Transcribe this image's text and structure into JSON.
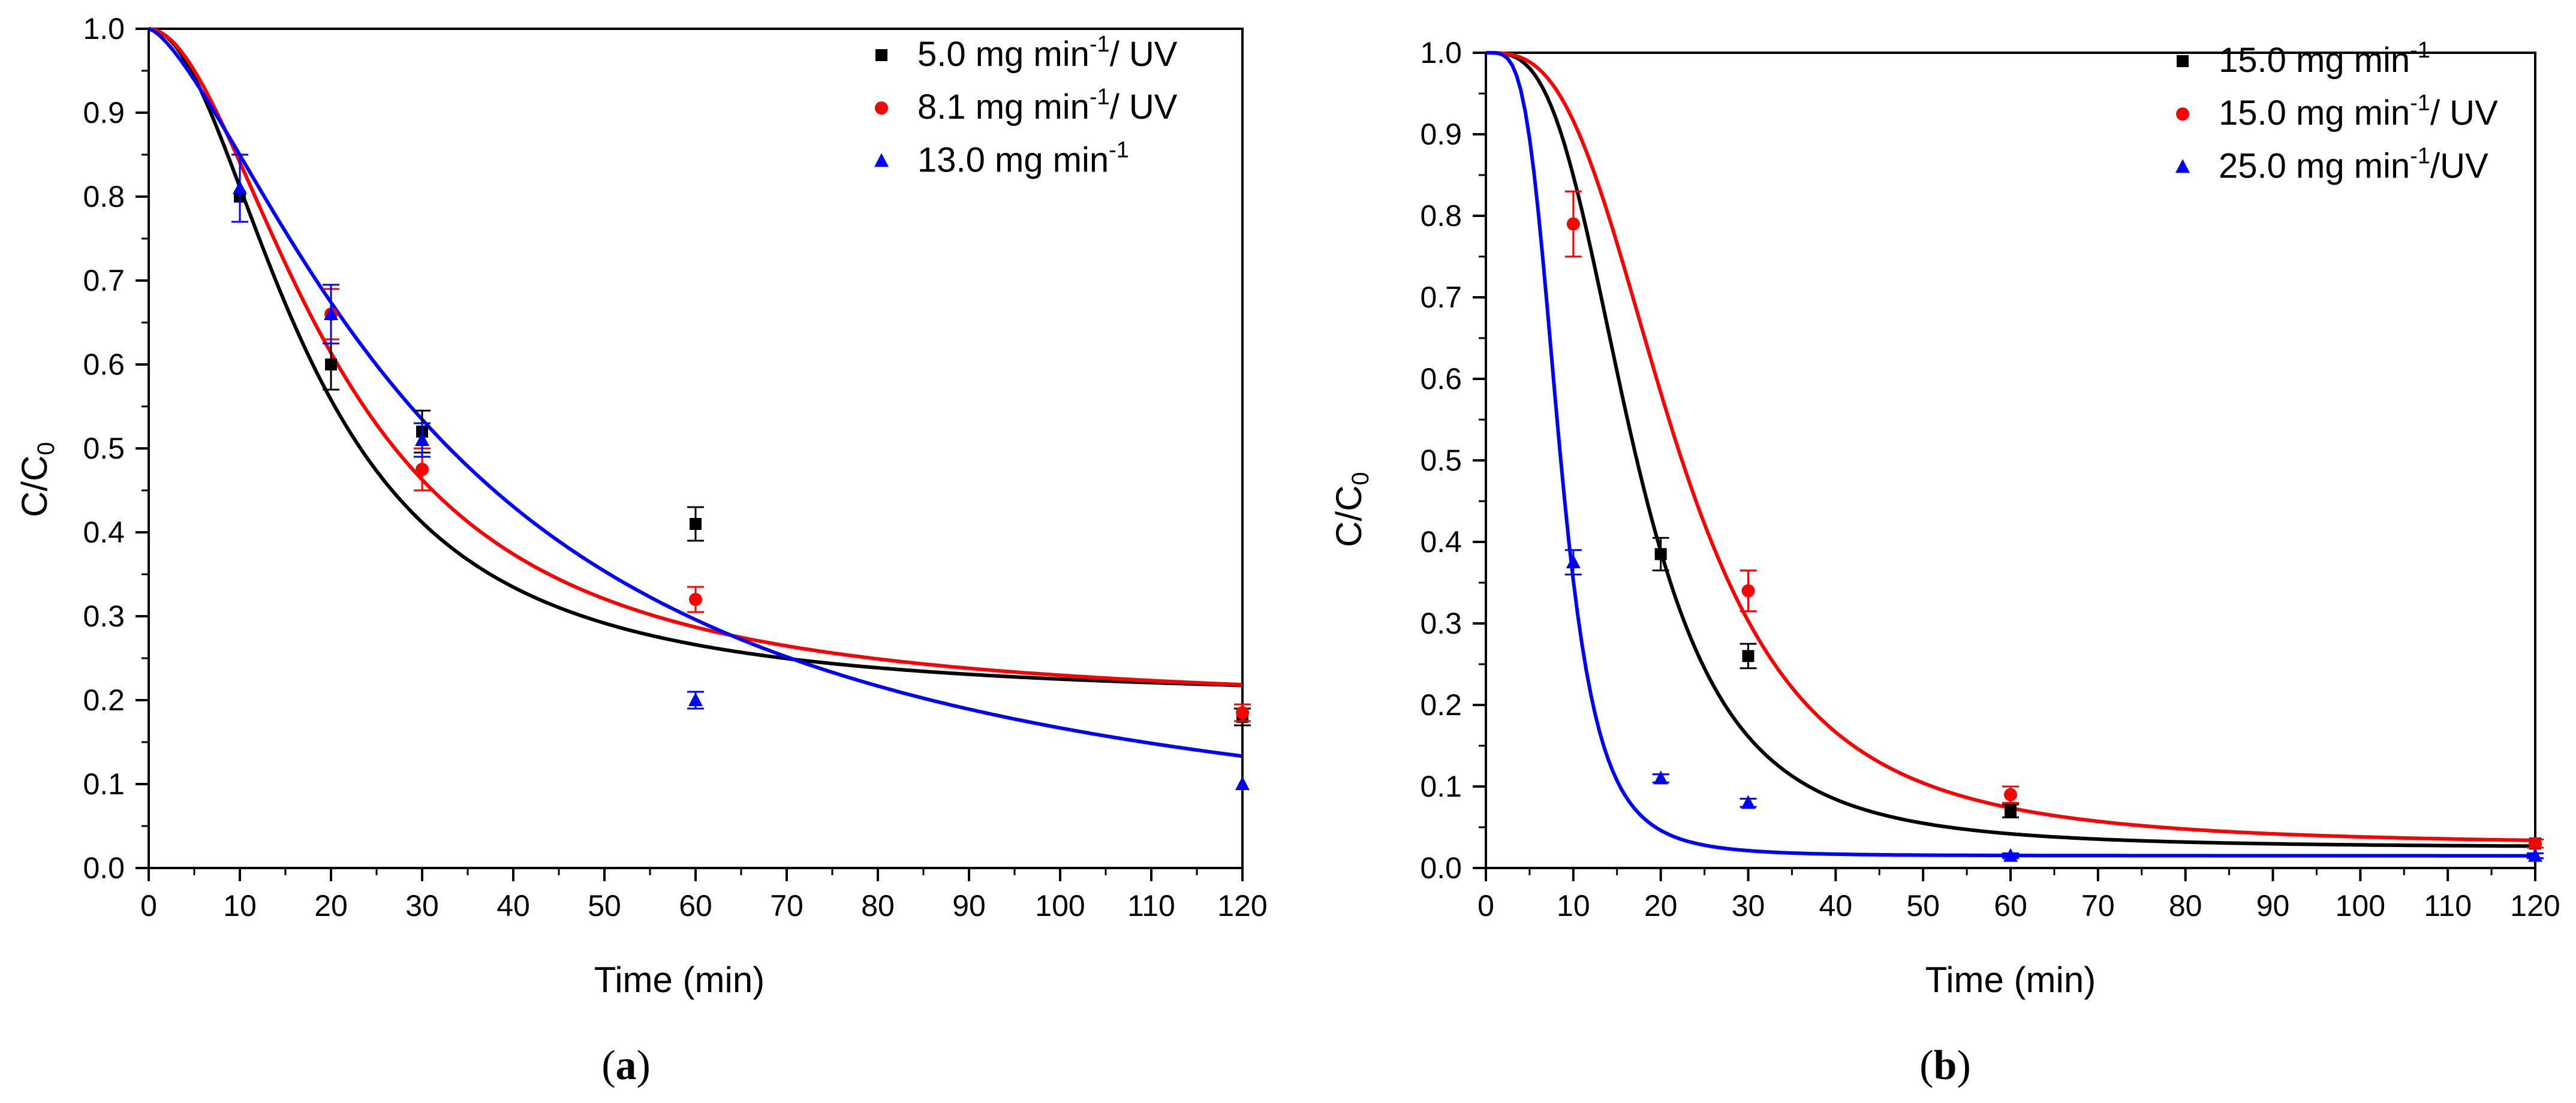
{
  "chart_data": [
    {
      "type": "scatter",
      "panel_label": "a",
      "xlabel": "Time (min)",
      "ylabel": "C/C",
      "ylabel_subscript": "0",
      "xlim": [
        0,
        120
      ],
      "ylim": [
        0,
        1.0
      ],
      "xticks": [
        "0",
        "10",
        "20",
        "30",
        "40",
        "50",
        "60",
        "70",
        "80",
        "90",
        "100",
        "110",
        "120"
      ],
      "yticks": [
        "0.0",
        "0.1",
        "0.2",
        "0.3",
        "0.4",
        "0.5",
        "0.6",
        "0.7",
        "0.8",
        "0.9",
        "1.0"
      ],
      "legend_position": "top-right",
      "series": [
        {
          "name": "5.0 mg min-1/ UV",
          "legend": {
            "pre": "5.0 mg min",
            "sup": "-1",
            "post": "/ UV"
          },
          "color": "#000000",
          "marker": "square",
          "x": [
            10,
            20,
            30,
            60,
            120
          ],
          "y": [
            0.8,
            0.6,
            0.52,
            0.41,
            0.18
          ],
          "err": [
            0.0,
            0.03,
            0.025,
            0.02,
            0.01
          ],
          "fit": {
            "A1": 1.0,
            "A2": 0.2,
            "x0": 18,
            "p": 2.0
          }
        },
        {
          "name": "8.1 mg min-1/ UV",
          "legend": {
            "pre": "8.1 mg min",
            "sup": "-1",
            "post": "/ UV"
          },
          "color": "#ff0000",
          "marker": "circle",
          "x": [
            20,
            30,
            60,
            120
          ],
          "y": [
            0.66,
            0.475,
            0.32,
            0.185
          ],
          "err": [
            0.03,
            0.025,
            0.015,
            0.01
          ],
          "fit": {
            "A1": 1.0,
            "A2": 0.19,
            "x0": 21,
            "p": 1.9
          }
        },
        {
          "name": "13.0 mg min-1",
          "legend": {
            "pre": "13.0 mg min",
            "sup": "-1",
            "post": ""
          },
          "color": "#0000ff",
          "marker": "triangle",
          "x": [
            10,
            20,
            30,
            60,
            120
          ],
          "y": [
            0.81,
            0.66,
            0.51,
            0.2,
            0.1
          ],
          "err": [
            0.04,
            0.035,
            0.02,
            0.01,
            0.0
          ],
          "fit": {
            "A1": 1.0,
            "A2": 0.0,
            "x0": 33,
            "p": 1.45
          }
        }
      ]
    },
    {
      "type": "scatter",
      "panel_label": "b",
      "xlabel": "Time (min)",
      "ylabel": "C/C",
      "ylabel_subscript": "0",
      "xlim": [
        0,
        120
      ],
      "ylim": [
        0,
        1.0
      ],
      "xticks": [
        "0",
        "10",
        "20",
        "30",
        "40",
        "50",
        "60",
        "70",
        "80",
        "90",
        "100",
        "110",
        "120"
      ],
      "yticks": [
        "0.0",
        "0.1",
        "0.2",
        "0.3",
        "0.4",
        "0.5",
        "0.6",
        "0.7",
        "0.8",
        "0.9",
        "1.0"
      ],
      "legend_position": "top-right",
      "series": [
        {
          "name": "15.0 mg min-1",
          "legend": {
            "pre": "15.0 mg min",
            "sup": "-1",
            "post": ""
          },
          "color": "#000000",
          "marker": "square",
          "x": [
            20,
            30,
            60,
            120
          ],
          "y": [
            0.385,
            0.26,
            0.07,
            0.03
          ],
          "err": [
            0.02,
            0.015,
            0.008,
            0.005
          ],
          "fit": {
            "A1": 1.0,
            "A2": 0.025,
            "x0": 17,
            "p": 3.2
          }
        },
        {
          "name": "15.0 mg min-1/ UV",
          "legend": {
            "pre": "15.0 mg min",
            "sup": "-1",
            "post": "/ UV"
          },
          "color": "#ff0000",
          "marker": "circle",
          "x": [
            10,
            30,
            60,
            120
          ],
          "y": [
            0.79,
            0.34,
            0.09,
            0.03
          ],
          "err": [
            0.04,
            0.025,
            0.01,
            0.005
          ],
          "fit": {
            "A1": 1.0,
            "A2": 0.028,
            "x0": 22,
            "p": 3.0
          }
        },
        {
          "name": "25.0 mg min-1/UV",
          "legend": {
            "pre": "25.0 mg min",
            "sup": "-1",
            "post": "/UV"
          },
          "color": "#0000ff",
          "marker": "triangle",
          "x": [
            10,
            20,
            30,
            60,
            120
          ],
          "y": [
            0.375,
            0.11,
            0.08,
            0.015,
            0.015
          ],
          "err": [
            0.015,
            0.005,
            0.005,
            0.003,
            0.003
          ],
          "fit": {
            "A1": 1.0,
            "A2": 0.015,
            "x0": 8.5,
            "p": 4.0
          }
        }
      ]
    }
  ]
}
